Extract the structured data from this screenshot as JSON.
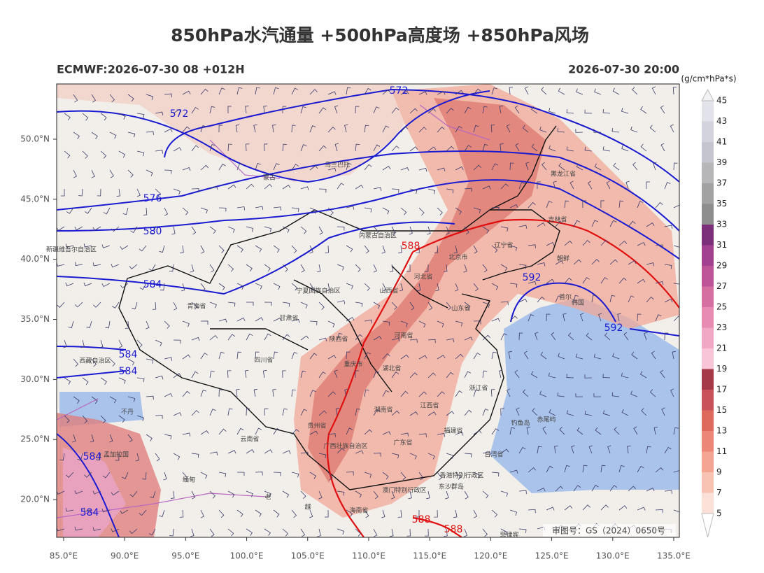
{
  "title": "850hPa水汽通量 +500hPa高度场 +850hPa风场",
  "init": "ECMWF:2026-07-30 08 +012H",
  "valid": "2026-07-30 20:00",
  "approval": "审图号：GS（2024）0650号",
  "map": {
    "xlim": [
      84.43,
      135.46
    ],
    "ylim": [
      16.86,
      54.6
    ],
    "lon_ticks": [
      {
        "value": 85,
        "label": "85.0°E"
      },
      {
        "value": 90,
        "label": "90.0°E"
      },
      {
        "value": 95,
        "label": "95.0°E"
      },
      {
        "value": 100,
        "label": "100.0°E"
      },
      {
        "value": 105,
        "label": "105.0°E"
      },
      {
        "value": 110,
        "label": "110.0°E"
      },
      {
        "value": 115,
        "label": "115.0°E"
      },
      {
        "value": 120,
        "label": "120.0°E"
      },
      {
        "value": 125,
        "label": "125.0°E"
      },
      {
        "value": 130,
        "label": "130.0°E"
      },
      {
        "value": 135,
        "label": "135.0°E"
      }
    ],
    "lat_ticks": [
      {
        "value": 20,
        "label": "20.0°N"
      },
      {
        "value": 25,
        "label": "25.0°N"
      },
      {
        "value": 30,
        "label": "30.0°N"
      },
      {
        "value": 35,
        "label": "35.0°N"
      },
      {
        "value": 40,
        "label": "40.0°N"
      },
      {
        "value": 45,
        "label": "45.0°N"
      },
      {
        "value": 50,
        "label": "50.0°N"
      }
    ]
  },
  "colorbar": {
    "unit": "(g/cm*hPa*s)",
    "levels": [
      5,
      7,
      9,
      11,
      13,
      15,
      17,
      19,
      21,
      23,
      25,
      27,
      29,
      31,
      33,
      35,
      37,
      39,
      41,
      43,
      45
    ],
    "colors": [
      "#fbe0d8",
      "#f8c3b2",
      "#f3a592",
      "#ec8676",
      "#de6a5e",
      "#c8515a",
      "#a53947",
      "#f7c5d7",
      "#f0a8c5",
      "#e78bb3",
      "#d56ea1",
      "#bd5497",
      "#a2418f",
      "#7b2f7b",
      "#8d8d8d",
      "#a2a2a2",
      "#b6b6b8",
      "#c5c5d0",
      "#d3d3dd",
      "#e2e2ea"
    ]
  },
  "contours": [
    {
      "value": 572,
      "color": "#1a1ad0"
    },
    {
      "value": 572,
      "color": "#1a1ad0"
    },
    {
      "value": 576,
      "color": "#1a1ad0"
    },
    {
      "value": 580,
      "color": "#1a1ad0"
    },
    {
      "value": 584,
      "color": "#1a1ad0"
    },
    {
      "value": 584,
      "color": "#1a1ad0"
    },
    {
      "value": 584,
      "color": "#1a1ad0"
    },
    {
      "value": 584,
      "color": "#1a1ad0"
    },
    {
      "value": 584,
      "color": "#1a1ad0"
    },
    {
      "value": 588,
      "color": "#e01010"
    },
    {
      "value": 592,
      "color": "#1a1ad0"
    },
    {
      "value": 592,
      "color": "#1a1ad0"
    },
    {
      "value": 588,
      "color": "#e01010"
    },
    {
      "value": 588,
      "color": "#e01010"
    }
  ],
  "places": [
    "蒙古",
    "乌兰巴托",
    "内蒙古自治区",
    "新疆维吾尔自治区",
    "宁夏回族自治区",
    "甘肃省",
    "青海省",
    "陕西省",
    "山西省",
    "河北省",
    "北京市",
    "辽宁省",
    "吉林省",
    "黑龙江省",
    "朝鲜",
    "首尔",
    "韩国",
    "山东省",
    "河南省",
    "湖北省",
    "重庆市",
    "四川省",
    "西藏自治区",
    "贵州省",
    "云南省",
    "湖南省",
    "江西省",
    "浙江省",
    "福建省",
    "广东省",
    "广西壮族自治区",
    "台湾省",
    "香港特别行政区",
    "澳门特别行政区",
    "东沙群岛",
    "钓鱼岛",
    "赤尾屿",
    "海南省",
    "菲律宾",
    "不丹",
    "孟加拉国",
    "缅甸",
    "老",
    "越"
  ]
}
